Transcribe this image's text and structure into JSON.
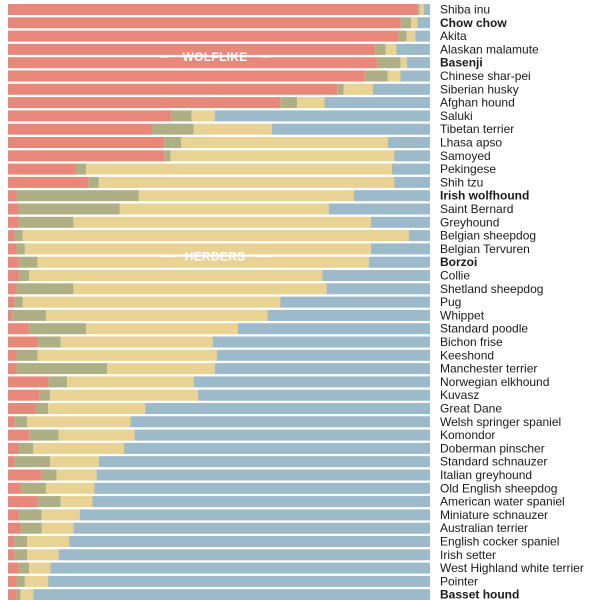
{
  "chart_data": {
    "type": "bar",
    "orientation": "horizontal",
    "stacked": "100%",
    "axes_visible": false,
    "grid": false,
    "legend": "none",
    "colors": {
      "wolflike": "#E8887A",
      "c2": "#AFAF85",
      "herders": "#E9D394",
      "c4": "#9DBACB",
      "label_default": "#1a1a1a",
      "label_red": "#E04F3A",
      "label_olive": "#9A9A68",
      "label_blue": "#4F8AA5"
    },
    "band_labels": [
      {
        "text": "WOLFLIKE",
        "row": 3.5,
        "series": 0
      },
      {
        "text": "HERDERS",
        "row": 18.5,
        "series": 2
      }
    ],
    "categories": [
      {
        "name": "Shiba inu",
        "color": "default",
        "values": [
          97.0,
          0.5,
          1.0,
          1.5
        ]
      },
      {
        "name": "Chow chow",
        "color": "red",
        "values": [
          93.0,
          2.5,
          1.5,
          3.0
        ]
      },
      {
        "name": "Akita",
        "color": "default",
        "values": [
          92.5,
          2.0,
          2.0,
          3.5
        ]
      },
      {
        "name": "Alaskan malamute",
        "color": "default",
        "values": [
          87.0,
          2.5,
          2.5,
          8.0
        ]
      },
      {
        "name": "Basenji",
        "color": "red",
        "values": [
          87.5,
          5.5,
          1.5,
          5.5
        ]
      },
      {
        "name": "Chinese shar-pei",
        "color": "default",
        "values": [
          84.5,
          5.5,
          3.0,
          7.0
        ]
      },
      {
        "name": "Siberian husky",
        "color": "default",
        "values": [
          78.0,
          1.5,
          7.0,
          13.5
        ]
      },
      {
        "name": "Afghan hound",
        "color": "default",
        "values": [
          64.5,
          4.0,
          6.5,
          25.0
        ]
      },
      {
        "name": "Saluki",
        "color": "default",
        "values": [
          38.5,
          5.0,
          5.5,
          51.0
        ]
      },
      {
        "name": "Tibetan terrier",
        "color": "default",
        "values": [
          34.0,
          10.0,
          18.5,
          37.5
        ]
      },
      {
        "name": "Lhasa apso",
        "color": "default",
        "values": [
          37.0,
          4.0,
          49.0,
          10.0
        ]
      },
      {
        "name": "Samoyed",
        "color": "default",
        "values": [
          37.0,
          1.5,
          53.0,
          8.5
        ]
      },
      {
        "name": "Pekingese",
        "color": "default",
        "values": [
          16.0,
          2.5,
          72.5,
          9.0
        ]
      },
      {
        "name": "Shih tzu",
        "color": "default",
        "values": [
          19.0,
          2.5,
          70.0,
          8.5
        ]
      },
      {
        "name": "Irish wolfhound",
        "color": "olive",
        "values": [
          2.0,
          29.0,
          51.0,
          18.0
        ]
      },
      {
        "name": "Saint Bernard",
        "color": "default",
        "values": [
          2.5,
          24.0,
          49.5,
          24.0
        ]
      },
      {
        "name": "Greyhound",
        "color": "default",
        "values": [
          2.5,
          13.0,
          70.5,
          14.0
        ]
      },
      {
        "name": "Belgian sheepdog",
        "color": "default",
        "values": [
          1.5,
          2.0,
          91.5,
          5.0
        ]
      },
      {
        "name": "Belgian Tervuren",
        "color": "default",
        "values": [
          2.0,
          2.0,
          82.0,
          14.0
        ]
      },
      {
        "name": "Borzoi",
        "color": "olive",
        "values": [
          2.5,
          4.5,
          78.5,
          14.5
        ]
      },
      {
        "name": "Collie",
        "color": "default",
        "values": [
          2.5,
          2.5,
          69.5,
          25.5
        ]
      },
      {
        "name": "Shetland sheepdog",
        "color": "default",
        "values": [
          2.0,
          13.5,
          60.0,
          24.5
        ]
      },
      {
        "name": "Pug",
        "color": "default",
        "values": [
          1.5,
          2.0,
          61.0,
          35.5
        ]
      },
      {
        "name": "Whippet",
        "color": "default",
        "values": [
          1.0,
          8.0,
          52.5,
          38.5
        ]
      },
      {
        "name": "Standard poodle",
        "color": "default",
        "values": [
          5.0,
          13.5,
          36.0,
          45.5
        ]
      },
      {
        "name": "Bichon frise",
        "color": "default",
        "values": [
          7.0,
          5.5,
          36.0,
          51.5
        ]
      },
      {
        "name": "Keeshond",
        "color": "default",
        "values": [
          2.0,
          5.0,
          42.5,
          50.5
        ]
      },
      {
        "name": "Manchester terrier",
        "color": "default",
        "values": [
          2.0,
          21.5,
          25.5,
          51.0
        ]
      },
      {
        "name": "Norwegian elkhound",
        "color": "default",
        "values": [
          9.5,
          4.5,
          30.0,
          56.0
        ]
      },
      {
        "name": "Kuvasz",
        "color": "default",
        "values": [
          7.5,
          2.5,
          35.0,
          55.0
        ]
      },
      {
        "name": "Great Dane",
        "color": "default",
        "values": [
          6.5,
          3.0,
          23.0,
          67.5
        ]
      },
      {
        "name": "Welsh springer spaniel",
        "color": "default",
        "values": [
          1.5,
          3.0,
          24.5,
          71.0
        ]
      },
      {
        "name": "Komondor",
        "color": "default",
        "values": [
          5.0,
          7.0,
          18.0,
          70.0
        ]
      },
      {
        "name": "Doberman pinscher",
        "color": "default",
        "values": [
          2.5,
          3.5,
          21.5,
          72.5
        ]
      },
      {
        "name": "Standard schnauzer",
        "color": "default",
        "values": [
          1.5,
          8.5,
          11.5,
          78.5
        ]
      },
      {
        "name": "Italian greyhound",
        "color": "default",
        "values": [
          8.0,
          3.5,
          9.5,
          79.0
        ]
      },
      {
        "name": "Old English sheepdog",
        "color": "default",
        "values": [
          3.0,
          6.0,
          11.5,
          79.5
        ]
      },
      {
        "name": "American water spaniel",
        "color": "default",
        "values": [
          7.0,
          5.5,
          7.5,
          80.0
        ]
      },
      {
        "name": "Miniature schnauzer",
        "color": "default",
        "values": [
          2.5,
          5.5,
          9.0,
          83.0
        ]
      },
      {
        "name": "Australian terrier",
        "color": "default",
        "values": [
          3.0,
          5.0,
          7.5,
          84.5
        ]
      },
      {
        "name": "English cocker spaniel",
        "color": "default",
        "values": [
          1.5,
          3.0,
          10.0,
          85.5
        ]
      },
      {
        "name": "Irish setter",
        "color": "default",
        "values": [
          1.5,
          3.0,
          7.5,
          88.0
        ]
      },
      {
        "name": "West Highland white terrier",
        "color": "default",
        "values": [
          2.5,
          2.5,
          5.0,
          90.0
        ]
      },
      {
        "name": "Pointer",
        "color": "default",
        "values": [
          2.0,
          2.0,
          5.5,
          90.5
        ]
      },
      {
        "name": "Basset hound",
        "color": "blue",
        "values": [
          2.0,
          1.0,
          3.0,
          94.0
        ]
      }
    ]
  }
}
